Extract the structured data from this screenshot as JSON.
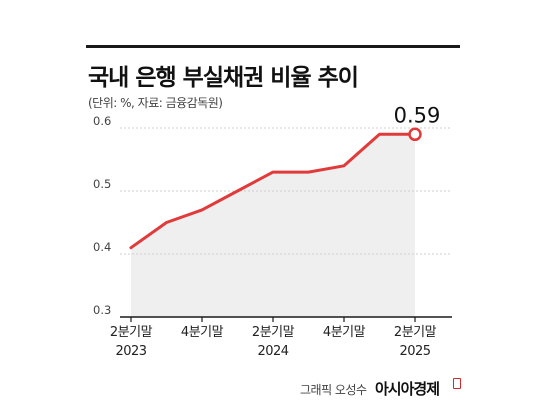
{
  "title": "국내 은행 부실채권 비율 추이",
  "subtitle": "(단위: %, 자료: 금융감독원)",
  "credit": {
    "prefix": "그래픽 오성수",
    "brand": "아시아경제"
  },
  "colors": {
    "line": "#e03a3a",
    "area": "#efefef",
    "axis": "#1a1a1a",
    "grid": "#cfcfcf"
  },
  "chart_data": {
    "type": "area",
    "title": "국내 은행 부실채권 비율 추이",
    "ylabel": "",
    "xlabel": "",
    "ylim": [
      0.3,
      0.6
    ],
    "yticks": [
      "0.3",
      "0.4",
      "0.5",
      "0.6"
    ],
    "xticks": [
      {
        "label1": "2분기말",
        "label2": "2023"
      },
      {
        "label1": "4분기말",
        "label2": ""
      },
      {
        "label1": "2분기말",
        "label2": "2024"
      },
      {
        "label1": "4분기말",
        "label2": ""
      },
      {
        "label1": "2분기말",
        "label2": "2025"
      }
    ],
    "grid": "horizontal",
    "series": [
      {
        "x": [
          "2023 2Q",
          "2023 3Q",
          "2023 4Q",
          "2024 1Q",
          "2024 2Q",
          "2024 3Q",
          "2024 4Q",
          "2025 1Q",
          "2025 2Q"
        ],
        "values": [
          0.41,
          0.45,
          0.47,
          0.5,
          0.53,
          0.53,
          0.54,
          0.59,
          0.59
        ]
      }
    ],
    "annotation": {
      "index": 8,
      "text": "0.59"
    }
  }
}
